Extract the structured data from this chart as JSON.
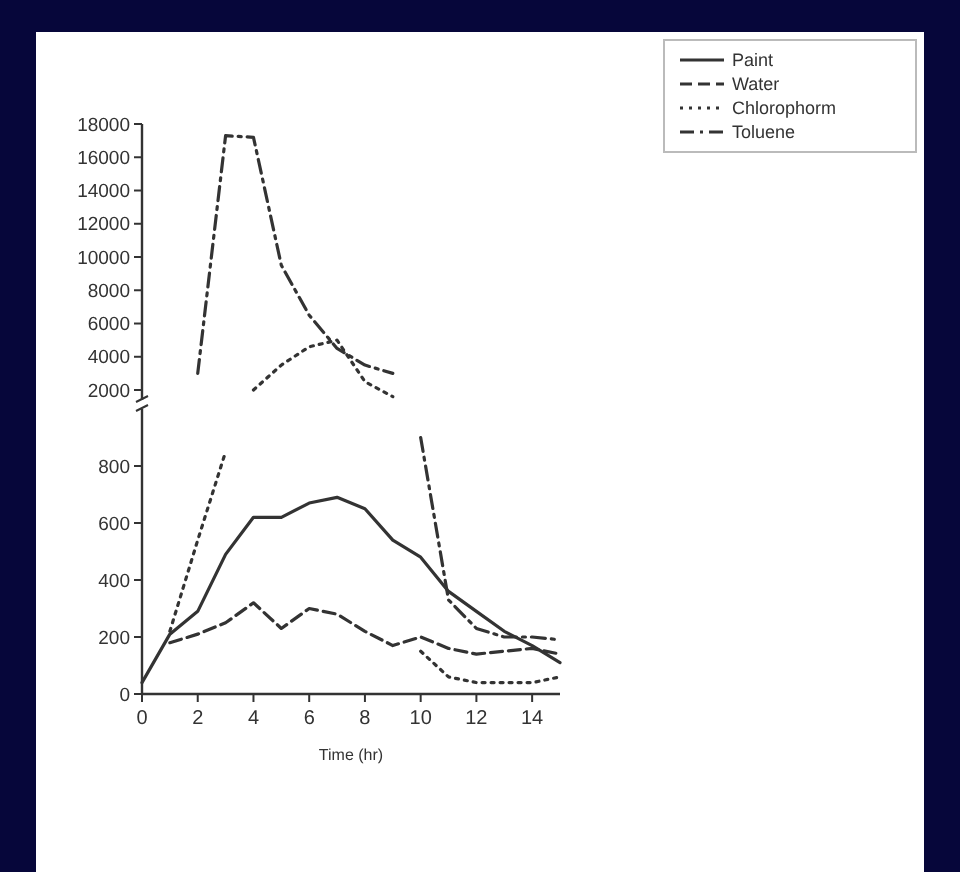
{
  "chart_data": [
    {
      "type": "line",
      "x": [
        0,
        1,
        2,
        3,
        4,
        5,
        6,
        7,
        8,
        9,
        10,
        11,
        12,
        13,
        14,
        15
      ],
      "ylim": [
        1400,
        18000
      ],
      "yticks": [
        2000,
        4000,
        6000,
        8000,
        10000,
        12000,
        14000,
        16000,
        18000
      ],
      "tick_labels": "y",
      "legend": "top right",
      "series": [
        {
          "name": "Paint",
          "color": "#333333",
          "line_style": "solid",
          "values": [
            null,
            null,
            null,
            null,
            null,
            null,
            null,
            null,
            null,
            null,
            null,
            null,
            null,
            null,
            null,
            null
          ]
        },
        {
          "name": "Water",
          "color": "#333333",
          "line_style": "dashed",
          "values": [
            null,
            null,
            null,
            null,
            null,
            null,
            null,
            null,
            null,
            null,
            null,
            null,
            null,
            null,
            null,
            null
          ]
        },
        {
          "name": "Chlorophorm",
          "color": "#333333",
          "line_style": "dotted",
          "values": [
            null,
            null,
            null,
            null,
            2000,
            3500,
            4600,
            5000,
            2500,
            1600,
            null,
            null,
            null,
            null,
            null,
            null
          ]
        },
        {
          "name": "Toluene",
          "color": "#333333",
          "line_style": "dashdot",
          "values": [
            null,
            null,
            3000,
            17300,
            17200,
            9500,
            6500,
            4500,
            3500,
            3000,
            null,
            null,
            null,
            null,
            null,
            null
          ]
        }
      ]
    },
    {
      "type": "line",
      "x": [
        0,
        1,
        2,
        3,
        4,
        5,
        6,
        7,
        8,
        9,
        10,
        11,
        12,
        13,
        14,
        15
      ],
      "xlim": [
        0,
        15
      ],
      "xticks": [
        0,
        2,
        4,
        6,
        8,
        10,
        12,
        14
      ],
      "ylim": [
        0,
        1000
      ],
      "yticks": [
        0,
        200,
        400,
        600,
        800
      ],
      "xlabel": "Time (hr)",
      "series": [
        {
          "color": "#333333",
          "line_style": "solid",
          "values": [
            40,
            210,
            290,
            490,
            620,
            620,
            670,
            690,
            650,
            540,
            480,
            360,
            290,
            220,
            170,
            110
          ]
        },
        {
          "color": "#333333",
          "line_style": "dashed",
          "values": [
            null,
            180,
            210,
            250,
            320,
            230,
            300,
            280,
            220,
            170,
            200,
            160,
            140,
            150,
            160,
            140
          ]
        },
        {
          "color": "#333333",
          "line_style": "dotted",
          "values": [
            null,
            220,
            540,
            850,
            null,
            null,
            null,
            null,
            null,
            null,
            150,
            60,
            40,
            40,
            40,
            60
          ]
        },
        {
          "color": "#333333",
          "line_style": "dashdot",
          "values": [
            null,
            null,
            null,
            null,
            null,
            null,
            null,
            null,
            null,
            null,
            900,
            330,
            230,
            200,
            200,
            190
          ]
        }
      ]
    }
  ]
}
